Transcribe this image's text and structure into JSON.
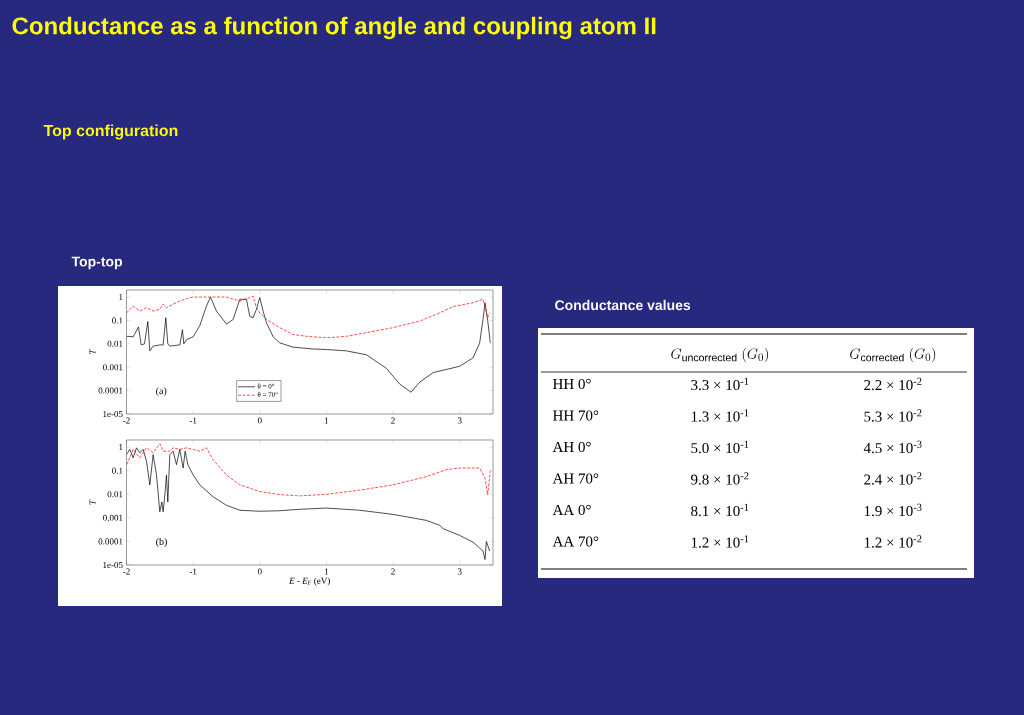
{
  "chart_data": [
    {
      "type": "line",
      "title": "Conductance as a function of angle and coupling atom II",
      "subtitle": "Top configuration",
      "ylabel": "T",
      "annotations": [
        "Top-top",
        "(a)"
      ],
      "log": "y",
      "xlim": [
        -2,
        3.5
      ],
      "xticks": [
        -2,
        -1,
        0,
        1,
        2,
        3
      ],
      "ylim": [
        1e-05,
        2
      ],
      "yticks": [
        1,
        0.1,
        0.01,
        0.001,
        0.0001,
        {
          "value": 1e-05,
          "label": "1e-05"
        }
      ],
      "legend": "bottom left",
      "marker": "none",
      "series": [
        {
          "name": "θ = 0°",
          "color": "#000000",
          "line_style": "solid",
          "x": [
            -2,
            -1.9,
            -1.82,
            -1.78,
            -1.73,
            -1.68,
            -1.65,
            -1.6,
            -1.5,
            -1.45,
            -1.41,
            -1.38,
            -1.35,
            -1.2,
            -1.16,
            -1.14,
            -1.1,
            -1.0,
            -0.9,
            -0.8,
            -0.74,
            -0.65,
            -0.5,
            -0.4,
            -0.3,
            -0.2,
            -0.15,
            -0.1,
            -0.05,
            0.0,
            0.05,
            0.1,
            0.2,
            0.3,
            0.5,
            0.8,
            1.0,
            1.3,
            1.6,
            1.9,
            2.1,
            2.27,
            2.4,
            2.6,
            2.8,
            3.0,
            3.2,
            3.3,
            3.35,
            3.38,
            3.42,
            3.46
          ],
          "values": [
            0.021,
            0.02,
            0.053,
            0.009,
            0.01,
            0.09,
            0.005,
            0.008,
            0.009,
            0.009,
            0.13,
            0.01,
            0.008,
            0.009,
            0.04,
            0.01,
            0.015,
            0.02,
            0.06,
            0.41,
            1,
            0.25,
            0.07,
            0.11,
            0.8,
            0.8,
            0.15,
            0.13,
            0.3,
            0.95,
            0.25,
            0.08,
            0.02,
            0.011,
            0.0072,
            0.006,
            0.0057,
            0.005,
            0.0034,
            0.0009,
            0.00019,
            8.5e-05,
            0.00023,
            0.00059,
            0.0008,
            0.0011,
            0.0025,
            0.011,
            0.11,
            0.57,
            0.1,
            0.011
          ]
        },
        {
          "name": "θ = 70°",
          "color": "#ff0000",
          "line_style": "dashed",
          "x": [
            -2,
            -1.9,
            -1.8,
            -1.7,
            -1.6,
            -1.5,
            -1.45,
            -1.4,
            -1.3,
            -1.2,
            -1.1,
            -1.0,
            -0.5,
            -0.3,
            -0.15,
            -0.1,
            -0.05,
            0.0,
            0.1,
            0.3,
            0.5,
            0.7,
            1.0,
            1.3,
            1.6,
            2.0,
            2.4,
            2.7,
            2.9,
            3.2,
            3.35,
            3.38,
            3.42,
            3.45
          ],
          "values": [
            0.21,
            0.41,
            0.25,
            0.35,
            0.25,
            0.3,
            0.5,
            0.35,
            0.5,
            0.67,
            0.85,
            1,
            1,
            0.67,
            0.95,
            1.1,
            0.35,
            0.21,
            0.11,
            0.049,
            0.025,
            0.021,
            0.018,
            0.021,
            0.03,
            0.049,
            0.094,
            0.21,
            0.39,
            0.57,
            0.8,
            0.41,
            0.13,
            0.21
          ]
        }
      ]
    },
    {
      "type": "line",
      "xlabel": "*E* - *E*$_{F}$ (eV)",
      "ylabel": "T",
      "annotations": [
        "(b)"
      ],
      "log": "y",
      "xlim": [
        -2,
        3.5
      ],
      "xticks": [
        -2,
        -1,
        0,
        1,
        2,
        3
      ],
      "ylim": [
        1e-05,
        2
      ],
      "yticks": [
        1,
        0.1,
        0.01,
        0.001,
        0.0001,
        {
          "value": 1e-05,
          "label": "1e-05"
        }
      ],
      "marker": "none",
      "series": [
        {
          "color": "#000000",
          "line_style": "solid",
          "x": [
            -2,
            -1.95,
            -1.9,
            -1.85,
            -1.8,
            -1.75,
            -1.7,
            -1.65,
            -1.6,
            -1.55,
            -1.5,
            -1.47,
            -1.45,
            -1.42,
            -1.4,
            -1.38,
            -1.35,
            -1.3,
            -1.25,
            -1.2,
            -1.15,
            -1.12,
            -1.08,
            -1.0,
            -0.9,
            -0.7,
            -0.5,
            -0.3,
            0.0,
            0.3,
            0.6,
            1.0,
            1.5,
            2.0,
            2.5,
            2.7,
            2.75,
            3.0,
            3.2,
            3.35,
            3.38,
            3.4,
            3.45
          ],
          "values": [
            0.48,
            0.8,
            0.35,
            0.93,
            0.57,
            0.8,
            0.25,
            0.025,
            0.48,
            0.066,
            0.0018,
            0.0047,
            0.0018,
            0.013,
            0.066,
            0.0047,
            0.48,
            0.67,
            0.18,
            0.8,
            0.13,
            0.67,
            0.18,
            0.066,
            0.025,
            0.0078,
            0.0034,
            0.0021,
            0.0019,
            0.002,
            0.0023,
            0.0026,
            0.0021,
            0.0014,
            0.00078,
            0.00048,
            0.00035,
            0.00018,
            9.3e-05,
            3.9e-05,
            1.7e-05,
            0.0001,
            3.9e-05
          ]
        },
        {
          "color": "#ff0000",
          "line_style": "dashed",
          "x": [
            -2,
            -1.95,
            -1.9,
            -1.8,
            -1.7,
            -1.6,
            -1.5,
            -1.45,
            -1.35,
            -1.3,
            -1.2,
            -1.1,
            -1.0,
            -0.9,
            -0.8,
            -0.7,
            -0.5,
            -0.3,
            0.0,
            0.3,
            0.6,
            1.0,
            1.5,
            2.0,
            2.5,
            2.8,
            3.0,
            3.3,
            3.38,
            3.42,
            3.46
          ],
          "values": [
            0.18,
            0.35,
            0.8,
            0.35,
            0.93,
            0.57,
            1.4,
            0.67,
            0.67,
            0.93,
            0.8,
            0.93,
            0.8,
            0.67,
            0.93,
            0.29,
            0.066,
            0.025,
            0.013,
            0.0097,
            0.0085,
            0.01,
            0.015,
            0.025,
            0.056,
            0.11,
            0.13,
            0.13,
            0.049,
            0.0094,
            0.1
          ]
        }
      ]
    },
    {
      "type": "other",
      "title": "Conductance values",
      "annotations": [
        "G_{\\mathrm{uncorrected}}\\ (G_{0})",
        "G_{\\mathrm{corrected}}\\ (G_{0})",
        "HH 0°",
        "3.3 × 10$^{-1}$",
        "2.2 × 10$^{-2}$",
        "HH 70°",
        "1.3 × 10$^{-1}$",
        "5.3 × 10$^{-2}$",
        "AH 0°",
        "5.0 × 10$^{-1}$",
        "4.5 × 10$^{-3}$",
        "AH 70°",
        "9.8 × 10$^{-2}$",
        "2.4 × 10$^{-2}$",
        "AA 0°",
        "8.1 × 10$^{-1}$",
        "1.9 × 10$^{-3}$",
        "AA 70°",
        "1.2 × 10$^{-1}$",
        "1.2 × 10$^{-2}$"
      ]
    }
  ]
}
